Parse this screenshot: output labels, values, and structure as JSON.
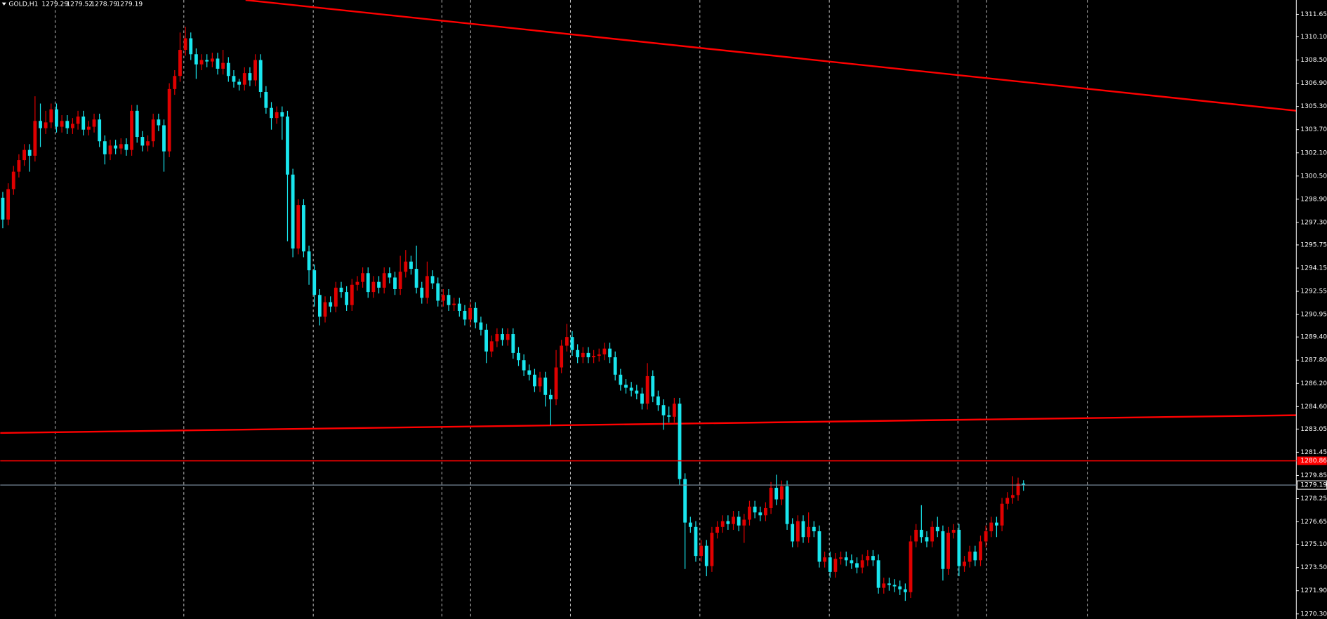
{
  "chart_data": {
    "type": "candlestick",
    "title": "GOLD,H1",
    "header_values": [
      1279.29,
      1279.52,
      1278.79,
      1279.19
    ],
    "up_color": "#e00000",
    "down_color": "#19e6ee",
    "ylim": [
      1269.95,
      1312.64
    ],
    "yticks": [
      1311.65,
      {
        "value": 1310.1,
        "label": "1310.10"
      },
      {
        "value": 1308.5,
        "label": "1308.50"
      },
      {
        "value": 1306.9,
        "label": "1306.90"
      },
      {
        "value": 1305.3,
        "label": "1305.30"
      },
      {
        "value": 1303.7,
        "label": "1303.70"
      },
      {
        "value": 1302.1,
        "label": "1302.10"
      },
      {
        "value": 1300.5,
        "label": "1300.50"
      },
      {
        "value": 1298.9,
        "label": "1298.90"
      },
      {
        "value": 1297.3,
        "label": "1297.30"
      },
      1295.75,
      1294.15,
      1292.55,
      1290.95,
      {
        "value": 1289.4,
        "label": "1289.40"
      },
      {
        "value": 1287.8,
        "label": "1287.80"
      },
      {
        "value": 1286.2,
        "label": "1286.20"
      },
      {
        "value": 1284.6,
        "label": "1284.60"
      },
      1283.05,
      1281.45,
      1279.85,
      1278.25,
      1276.65,
      {
        "value": 1275.1,
        "label": "1275.10"
      },
      {
        "value": 1273.5,
        "label": "1273.50"
      },
      {
        "value": 1271.9,
        "label": "1271.90"
      },
      {
        "value": 1270.3,
        "label": "1270.30"
      }
    ],
    "level": {
      "value": 1280.86,
      "color": "#ff0000"
    },
    "bid": {
      "value": 1279.19,
      "color": "#778899"
    },
    "open": [
      1299.0,
      1297.5,
      1299.6,
      1300.8,
      1301.6,
      1302.3,
      1301.9,
      1304.3,
      1303.8,
      1304.2,
      1305.1,
      1303.9,
      1304.3,
      1303.8,
      1304.1,
      1304.6,
      1303.7,
      1303.9,
      1304.4,
      1302.9,
      1302.0,
      1302.6,
      1302.4,
      1302.7,
      1302.3,
      1305.0,
      1303.2,
      1302.6,
      1302.9,
      1304.4,
      1304.0,
      1302.2,
      1306.5,
      1307.4,
      1309.2,
      1310.0,
      1308.9,
      1308.2,
      1308.5,
      1308.4,
      1308.6,
      1307.9,
      1308.3,
      1307.4,
      1307.0,
      1306.8,
      1307.6,
      1307.1,
      1308.5,
      1306.3,
      1305.2,
      1304.5,
      1304.9,
      1304.6,
      1300.6,
      1295.5,
      1298.5,
      1295.3,
      1294.0,
      1292.3,
      1290.8,
      1291.8,
      1291.5,
      1292.8,
      1292.5,
      1291.6,
      1293.0,
      1293.2,
      1293.8,
      1292.5,
      1293.2,
      1292.8,
      1293.8,
      1293.5,
      1292.7,
      1293.9,
      1294.6,
      1294.1,
      1292.8,
      1292.1,
      1293.6,
      1293.1,
      1291.9,
      1292.3,
      1291.6,
      1291.7,
      1291.2,
      1290.6,
      1291.4,
      1290.4,
      1289.9,
      1288.4,
      1289.1,
      1289.6,
      1289.2,
      1289.6,
      1288.3,
      1287.8,
      1287.1,
      1286.8,
      1286.0,
      1286.6,
      1285.4,
      1285.1,
      1287.3,
      1288.8,
      1289.4,
      1288.5,
      1288.0,
      1288.3,
      1288.0,
      1288.1,
      1288.2,
      1288.6,
      1288.0,
      1286.8,
      1286.1,
      1285.9,
      1285.7,
      1285.5,
      1284.8,
      1286.7,
      1285.3,
      1284.7,
      1284.0,
      1283.9,
      1284.8,
      1279.6,
      1276.6,
      1276.3,
      1274.3,
      1275.0,
      1273.6,
      1275.9,
      1276.3,
      1276.7,
      1276.5,
      1277.0,
      1276.4,
      1276.8,
      1277.7,
      1277.3,
      1277.1,
      1277.6,
      1279.0,
      1278.2,
      1279.1,
      1276.5,
      1275.3,
      1276.7,
      1275.6,
      1276.3,
      1276.0,
      1273.9,
      1274.2,
      1273.2,
      1274.1,
      1274.2,
      1274.0,
      1273.8,
      1273.5,
      1274.0,
      1274.3,
      1274.0,
      1272.1,
      1272.4,
      1272.3,
      1272.2,
      1272.0,
      1271.8,
      1275.3,
      1276.1,
      1275.6,
      1275.3,
      1276.3,
      1276.0,
      1273.4,
      1275.9,
      1276.1,
      1273.6,
      1273.9,
      1274.6,
      1274.0,
      1275.3,
      1276.0,
      1276.6,
      1276.4,
      1277.9,
      1278.3,
      1278.5,
      1279.29
    ],
    "high": [
      1299.4,
      1300.0,
      1301.2,
      1302.0,
      1302.7,
      1302.7,
      1306.0,
      1305.5,
      1305.0,
      1305.5,
      1305.5,
      1304.7,
      1304.7,
      1304.5,
      1305.0,
      1305.0,
      1304.3,
      1304.8,
      1304.8,
      1303.3,
      1303.0,
      1303.0,
      1303.1,
      1303.1,
      1305.4,
      1305.4,
      1303.6,
      1303.3,
      1304.8,
      1304.8,
      1304.4,
      1306.9,
      1307.8,
      1310.4,
      1310.8,
      1310.4,
      1309.3,
      1308.9,
      1308.9,
      1309.0,
      1309.0,
      1309.2,
      1308.7,
      1307.8,
      1307.2,
      1308.0,
      1308.0,
      1308.9,
      1308.9,
      1306.7,
      1305.6,
      1305.3,
      1305.3,
      1305.0,
      1301.0,
      1298.9,
      1298.9,
      1295.7,
      1294.4,
      1292.7,
      1292.2,
      1292.2,
      1293.2,
      1293.2,
      1292.9,
      1293.4,
      1293.6,
      1294.2,
      1294.2,
      1293.6,
      1293.6,
      1294.2,
      1294.2,
      1293.9,
      1295.0,
      1295.4,
      1295.0,
      1295.7,
      1293.2,
      1294.6,
      1294.0,
      1293.5,
      1292.7,
      1292.7,
      1292.1,
      1292.1,
      1291.6,
      1291.8,
      1291.8,
      1290.8,
      1290.3,
      1289.5,
      1290.0,
      1290.0,
      1290.0,
      1290.0,
      1288.7,
      1288.2,
      1287.5,
      1287.2,
      1287.0,
      1287.0,
      1285.8,
      1288.5,
      1289.2,
      1290.3,
      1289.8,
      1288.9,
      1288.7,
      1288.7,
      1288.5,
      1288.6,
      1289.0,
      1289.0,
      1288.4,
      1287.2,
      1286.5,
      1286.3,
      1286.1,
      1285.9,
      1287.6,
      1287.1,
      1285.7,
      1285.1,
      1284.6,
      1285.2,
      1285.2,
      1280.0,
      1277.0,
      1276.7,
      1275.4,
      1275.4,
      1276.3,
      1276.7,
      1277.1,
      1277.1,
      1277.4,
      1277.4,
      1277.2,
      1278.1,
      1278.1,
      1277.7,
      1278.0,
      1279.4,
      1279.9,
      1279.5,
      1279.5,
      1276.9,
      1277.1,
      1277.1,
      1277.3,
      1276.7,
      1276.4,
      1274.6,
      1274.6,
      1274.5,
      1274.6,
      1274.6,
      1274.4,
      1274.2,
      1274.4,
      1274.7,
      1274.7,
      1274.4,
      1272.8,
      1272.8,
      1272.7,
      1272.6,
      1272.4,
      1275.7,
      1276.5,
      1277.8,
      1276.0,
      1276.7,
      1277.0,
      1276.4,
      1276.3,
      1276.5,
      1276.5,
      1274.3,
      1275.0,
      1275.0,
      1275.7,
      1276.4,
      1277.0,
      1277.0,
      1278.3,
      1278.7,
      1279.8,
      1279.7,
      1279.52
    ],
    "low": [
      1296.9,
      1297.1,
      1299.2,
      1300.4,
      1301.2,
      1300.8,
      1301.5,
      1302.5,
      1303.4,
      1303.8,
      1303.5,
      1303.5,
      1303.4,
      1303.4,
      1303.7,
      1303.3,
      1303.3,
      1303.5,
      1302.5,
      1301.3,
      1301.6,
      1302.0,
      1302.0,
      1301.9,
      1301.9,
      1302.8,
      1302.2,
      1302.2,
      1302.5,
      1303.6,
      1300.8,
      1301.8,
      1306.1,
      1307.0,
      1308.8,
      1308.5,
      1307.2,
      1307.8,
      1308.0,
      1308.0,
      1307.5,
      1307.5,
      1307.0,
      1306.6,
      1306.4,
      1306.4,
      1306.7,
      1306.7,
      1305.9,
      1304.8,
      1303.7,
      1304.1,
      1303.0,
      1296.0,
      1294.9,
      1295.1,
      1294.9,
      1293.0,
      1291.5,
      1290.2,
      1290.4,
      1291.1,
      1291.1,
      1292.1,
      1291.2,
      1291.2,
      1292.6,
      1292.8,
      1292.1,
      1292.1,
      1292.4,
      1292.4,
      1293.1,
      1292.3,
      1292.3,
      1293.5,
      1293.7,
      1292.4,
      1291.7,
      1291.7,
      1292.7,
      1291.5,
      1291.5,
      1291.2,
      1291.2,
      1290.8,
      1290.2,
      1290.2,
      1290.0,
      1289.5,
      1287.6,
      1288.0,
      1288.7,
      1288.8,
      1288.8,
      1287.9,
      1287.4,
      1286.7,
      1286.4,
      1285.6,
      1285.6,
      1284.6,
      1283.3,
      1284.7,
      1286.9,
      1288.4,
      1288.1,
      1287.6,
      1287.6,
      1287.6,
      1287.6,
      1287.7,
      1287.8,
      1287.6,
      1286.4,
      1285.7,
      1285.5,
      1285.3,
      1285.1,
      1284.4,
      1284.4,
      1284.9,
      1284.3,
      1283.0,
      1283.5,
      1283.5,
      1279.2,
      1273.4,
      1275.9,
      1273.9,
      1273.9,
      1272.9,
      1273.2,
      1275.5,
      1275.9,
      1276.1,
      1276.1,
      1276.0,
      1275.2,
      1276.4,
      1276.9,
      1276.7,
      1276.7,
      1277.2,
      1277.8,
      1277.8,
      1276.1,
      1274.9,
      1274.9,
      1275.2,
      1275.2,
      1275.6,
      1273.5,
      1273.5,
      1272.8,
      1272.8,
      1273.7,
      1273.6,
      1273.4,
      1273.1,
      1273.1,
      1273.6,
      1273.6,
      1271.7,
      1271.7,
      1271.9,
      1271.8,
      1271.6,
      1271.2,
      1271.4,
      1274.9,
      1275.2,
      1274.9,
      1274.9,
      1275.6,
      1272.6,
      1273.0,
      1275.5,
      1272.9,
      1273.2,
      1273.5,
      1273.6,
      1273.6,
      1274.9,
      1275.6,
      1275.6,
      1276.0,
      1277.5,
      1277.9,
      1278.1,
      1278.79
    ],
    "close": [
      1297.5,
      1299.6,
      1300.8,
      1301.6,
      1302.3,
      1301.9,
      1304.3,
      1303.8,
      1304.2,
      1305.1,
      1303.9,
      1304.3,
      1303.8,
      1304.1,
      1304.6,
      1303.7,
      1303.9,
      1304.4,
      1302.9,
      1302.0,
      1302.6,
      1302.4,
      1302.7,
      1302.3,
      1305.0,
      1303.2,
      1302.6,
      1302.9,
      1304.4,
      1304.0,
      1302.2,
      1306.5,
      1307.4,
      1309.2,
      1310.0,
      1308.9,
      1308.2,
      1308.5,
      1308.4,
      1308.6,
      1307.9,
      1308.3,
      1307.4,
      1307.0,
      1306.8,
      1307.6,
      1307.1,
      1308.5,
      1306.3,
      1305.2,
      1304.5,
      1304.9,
      1304.6,
      1300.6,
      1295.5,
      1298.5,
      1295.3,
      1294.0,
      1292.3,
      1290.8,
      1291.8,
      1291.5,
      1292.8,
      1292.5,
      1291.6,
      1293.0,
      1293.2,
      1293.8,
      1292.5,
      1293.2,
      1292.8,
      1293.8,
      1293.5,
      1292.7,
      1293.9,
      1294.6,
      1294.1,
      1292.8,
      1292.1,
      1293.6,
      1293.1,
      1291.9,
      1292.3,
      1291.6,
      1291.7,
      1291.2,
      1290.6,
      1291.4,
      1290.4,
      1289.9,
      1288.4,
      1289.1,
      1289.6,
      1289.2,
      1289.6,
      1288.3,
      1287.8,
      1287.1,
      1286.8,
      1286.0,
      1286.6,
      1285.4,
      1285.1,
      1287.3,
      1288.8,
      1289.4,
      1288.5,
      1288.0,
      1288.3,
      1288.0,
      1288.1,
      1288.2,
      1288.6,
      1288.0,
      1286.8,
      1286.1,
      1285.9,
      1285.7,
      1285.5,
      1284.8,
      1286.7,
      1285.3,
      1284.7,
      1284.0,
      1283.9,
      1284.8,
      1279.6,
      1276.6,
      1276.3,
      1274.3,
      1275.0,
      1273.6,
      1275.9,
      1276.3,
      1276.7,
      1276.5,
      1277.0,
      1276.4,
      1276.8,
      1277.7,
      1277.3,
      1277.1,
      1277.6,
      1279.0,
      1278.2,
      1279.1,
      1276.5,
      1275.3,
      1276.7,
      1275.6,
      1276.3,
      1276.0,
      1273.9,
      1274.2,
      1273.2,
      1274.1,
      1274.2,
      1274.0,
      1273.8,
      1273.5,
      1274.0,
      1274.3,
      1274.0,
      1272.1,
      1272.4,
      1272.3,
      1272.2,
      1272.0,
      1271.8,
      1275.3,
      1276.1,
      1275.6,
      1275.3,
      1276.3,
      1276.0,
      1273.4,
      1275.9,
      1276.1,
      1273.6,
      1273.9,
      1274.6,
      1274.0,
      1275.3,
      1276.0,
      1276.6,
      1276.4,
      1277.9,
      1278.3,
      1278.5,
      1279.29,
      1279.19
    ]
  }
}
